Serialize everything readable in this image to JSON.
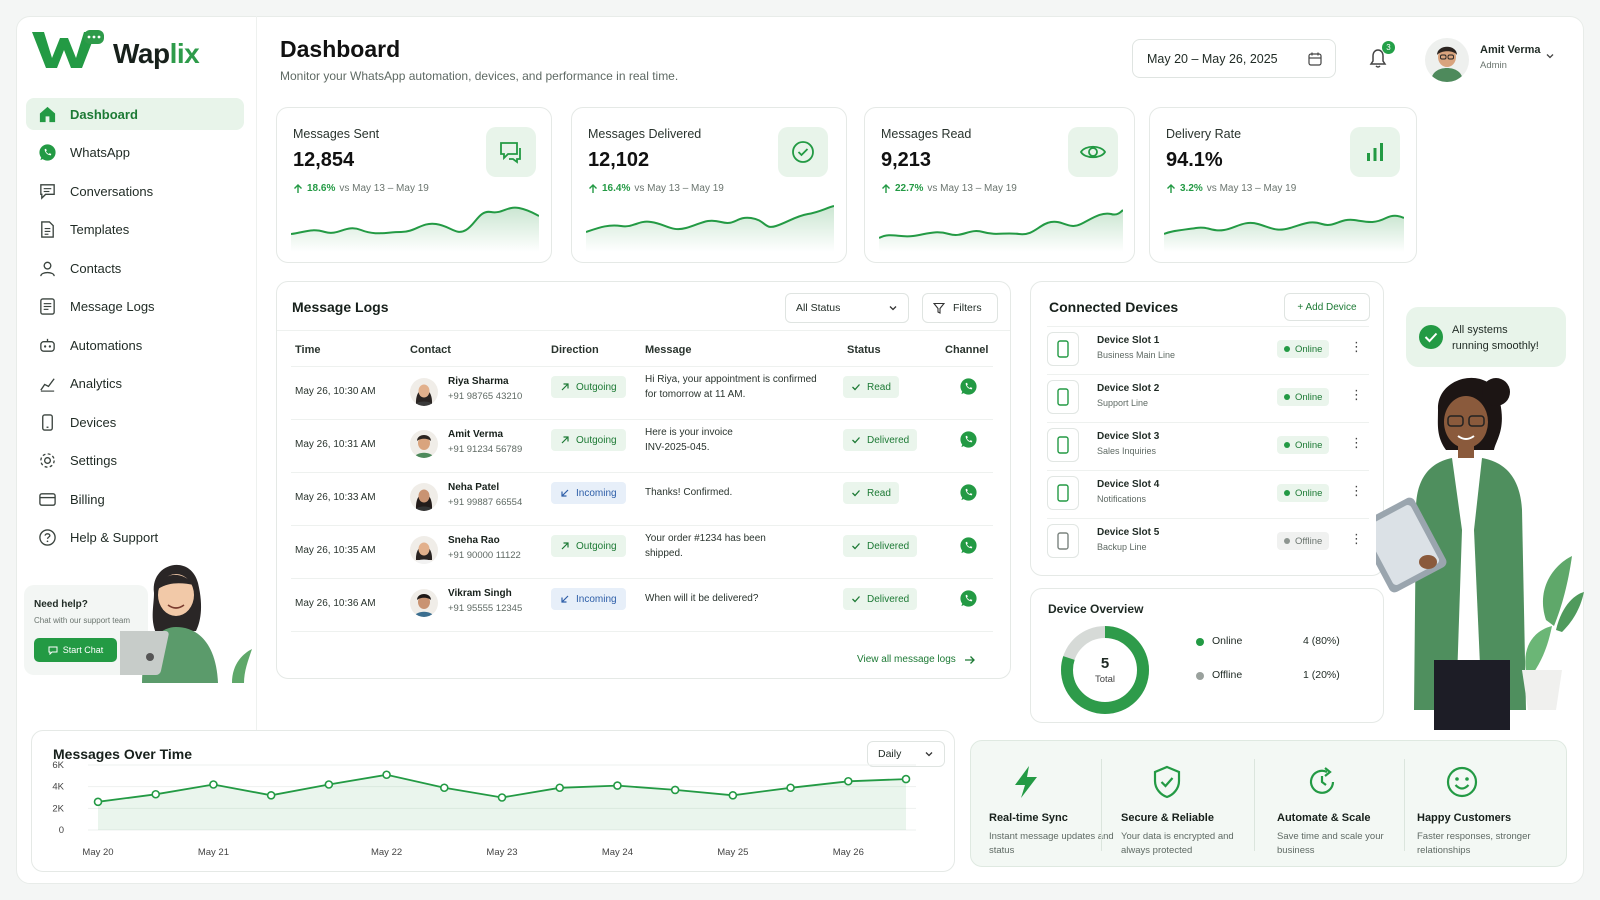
{
  "app": {
    "logo_text_main": "Wap",
    "logo_text_accent": "lix"
  },
  "sidebar": {
    "items": [
      {
        "label": "Dashboard",
        "icon": "home-icon",
        "active": true
      },
      {
        "label": "WhatsApp",
        "icon": "whatsapp-icon"
      },
      {
        "label": "Conversations",
        "icon": "chat-icon"
      },
      {
        "label": "Templates",
        "icon": "document-icon"
      },
      {
        "label": "Contacts",
        "icon": "user-icon"
      },
      {
        "label": "Message Logs",
        "icon": "list-icon"
      },
      {
        "label": "Automations",
        "icon": "robot-icon"
      },
      {
        "label": "Analytics",
        "icon": "chart-icon"
      },
      {
        "label": "Devices",
        "icon": "phone-icon"
      },
      {
        "label": "Settings",
        "icon": "gear-icon"
      },
      {
        "label": "Billing",
        "icon": "card-icon"
      },
      {
        "label": "Help & Support",
        "icon": "help-icon"
      }
    ],
    "help": {
      "title": "Need help?",
      "subtitle": "Chat with our support team",
      "button": "Start Chat"
    }
  },
  "header": {
    "title": "Dashboard",
    "subtitle": "Monitor your WhatsApp automation, devices, and performance in real time.",
    "date_range": "May 20 – May 26, 2025",
    "notifications": "3",
    "user": {
      "name": "Amit Verma",
      "role": "Admin"
    }
  },
  "stats": [
    {
      "title": "Messages Sent",
      "value": "12,854",
      "pct": "18.6%",
      "compare": "vs May 13 – May 19",
      "icon": "message-icon"
    },
    {
      "title": "Messages Delivered",
      "value": "12,102",
      "pct": "16.4%",
      "compare": "vs May 13 – May 19",
      "icon": "check-circle-icon"
    },
    {
      "title": "Messages Read",
      "value": "9,213",
      "pct": "22.7%",
      "compare": "vs May 13 – May 19",
      "icon": "eye-icon"
    },
    {
      "title": "Delivery Rate",
      "value": "94.1%",
      "pct": "3.2%",
      "compare": "vs May 13 – May 19",
      "icon": "bar-chart-icon"
    }
  ],
  "logs": {
    "title": "Message Logs",
    "status_filter": "All Status",
    "filters_label": "Filters",
    "columns": [
      "Time",
      "Contact",
      "Direction",
      "Message",
      "Status",
      "Channel"
    ],
    "rows": [
      {
        "time": "May 26, 10:30 AM",
        "name": "Riya Sharma",
        "phone": "+91 98765 43210",
        "direction": "Outgoing",
        "message": "Hi Riya, your appointment is confirmed for tomorrow at 11 AM.",
        "status": "Read"
      },
      {
        "time": "May 26, 10:31 AM",
        "name": "Amit Verma",
        "phone": "+91 91234 56789",
        "direction": "Outgoing",
        "message": "Here is your invoice INV-2025-045.",
        "status": "Delivered"
      },
      {
        "time": "May 26, 10:33 AM",
        "name": "Neha Patel",
        "phone": "+91 99887 66554",
        "direction": "Incoming",
        "message": "Thanks! Confirmed.",
        "status": "Read"
      },
      {
        "time": "May 26, 10:35 AM",
        "name": "Sneha Rao",
        "phone": "+91 90000 11122",
        "direction": "Outgoing",
        "message": "Your order #1234 has been shipped.",
        "status": "Delivered"
      },
      {
        "time": "May 26, 10:36 AM",
        "name": "Vikram Singh",
        "phone": "+91 95555 12345",
        "direction": "Incoming",
        "message": "When will it be delivered?",
        "status": "Delivered"
      }
    ],
    "view_all": "View all message logs"
  },
  "devices": {
    "title": "Connected Devices",
    "add_label": "+ Add Device",
    "list": [
      {
        "name": "Device Slot 1",
        "sub": "Business Main Line",
        "status": "Online"
      },
      {
        "name": "Device Slot 2",
        "sub": "Support Line",
        "status": "Online"
      },
      {
        "name": "Device Slot 3",
        "sub": "Sales Inquiries",
        "status": "Online"
      },
      {
        "name": "Device Slot 4",
        "sub": "Notifications",
        "status": "Online"
      },
      {
        "name": "Device Slot 5",
        "sub": "Backup Line",
        "status": "Offline"
      }
    ]
  },
  "overview": {
    "title": "Device Overview",
    "total": "5",
    "total_label": "Total",
    "legend": [
      {
        "label": "Online",
        "value": "4 (80%)",
        "fraction": 0.8,
        "color": "#2e9b4a"
      },
      {
        "label": "Offline",
        "value": "1 (20%)",
        "fraction": 0.2,
        "color": "#d6dad7"
      }
    ]
  },
  "status_bubble": {
    "text_line1": "All systems",
    "text_line2": "running smoothly!"
  },
  "messages_chart": {
    "title": "Messages Over Time",
    "period": "Daily",
    "y_ticks": [
      "6K",
      "4K",
      "2K",
      "0"
    ],
    "x_ticks": [
      "May 20",
      "May 21",
      "May 22",
      "May 23",
      "May 24",
      "May 25",
      "May 26"
    ]
  },
  "chart_data": {
    "type": "line",
    "title": "Messages Over Time",
    "xlabel": "",
    "ylabel": "",
    "ylim": [
      0,
      6000
    ],
    "x": [
      "May 20",
      "",
      "May 21",
      "",
      "",
      "May 22",
      "",
      "May 23",
      "",
      "May 24",
      "",
      "May 25",
      "",
      "May 26",
      ""
    ],
    "series": [
      {
        "values": [
          2600,
          3300,
          4200,
          3200,
          4200,
          5100,
          3900,
          3000,
          3900,
          4100,
          3700,
          3200,
          3900,
          4500,
          4700
        ]
      }
    ]
  },
  "features": [
    {
      "title": "Real-time Sync",
      "sub": "Instant message updates and status",
      "icon": "bolt-icon"
    },
    {
      "title": "Secure & Reliable",
      "sub": "Your data is encrypted and always protected",
      "icon": "shield-check-icon"
    },
    {
      "title": "Automate & Scale",
      "sub": "Save time and scale your business",
      "icon": "automate-icon"
    },
    {
      "title": "Happy Customers",
      "sub": "Faster responses, stronger relationships",
      "icon": "smile-icon"
    }
  ]
}
